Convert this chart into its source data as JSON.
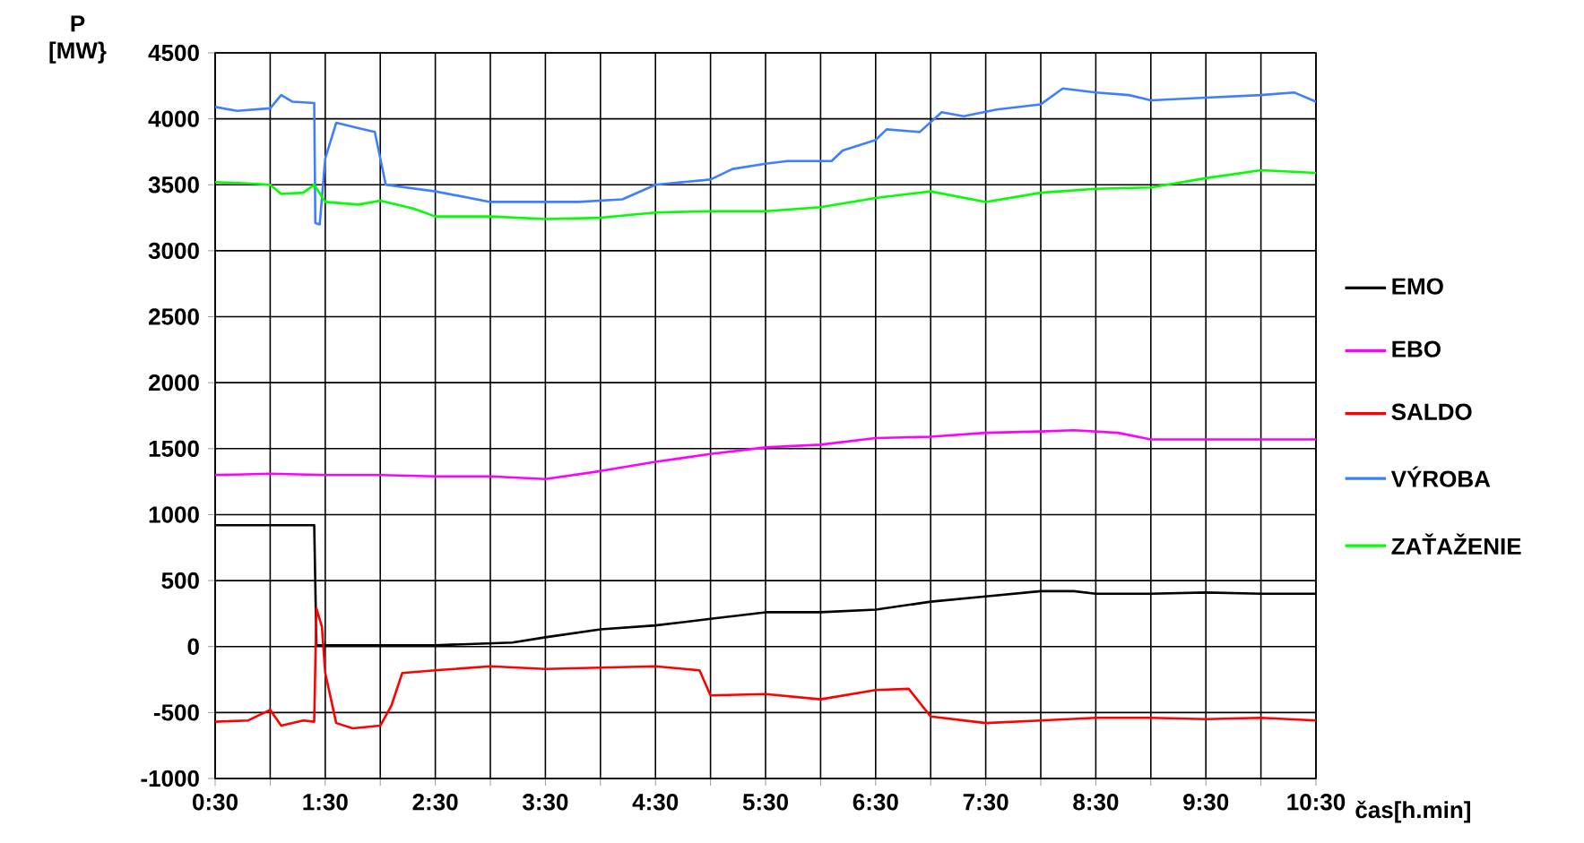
{
  "chart_data": {
    "type": "line",
    "xlabel": "čas[h.min]",
    "ylabel": "P [MW}",
    "xlim": [
      0.5,
      10.5
    ],
    "ylim": [
      -1000,
      4500
    ],
    "xticks": [
      {
        "value": 0.5,
        "label": "0:30"
      },
      {
        "value": 1,
        "label": null
      },
      {
        "value": 1.5,
        "label": "1:30"
      },
      {
        "value": 2,
        "label": null
      },
      {
        "value": 2.5,
        "label": "2:30"
      },
      {
        "value": 3,
        "label": null
      },
      {
        "value": 3.5,
        "label": "3:30"
      },
      {
        "value": 4,
        "label": null
      },
      {
        "value": 4.5,
        "label": "4:30"
      },
      {
        "value": 5,
        "label": null
      },
      {
        "value": 5.5,
        "label": "5:30"
      },
      {
        "value": 6,
        "label": null
      },
      {
        "value": 6.5,
        "label": "6:30"
      },
      {
        "value": 7,
        "label": null
      },
      {
        "value": 7.5,
        "label": "7:30"
      },
      {
        "value": 8,
        "label": null
      },
      {
        "value": 8.5,
        "label": "8:30"
      },
      {
        "value": 9,
        "label": null
      },
      {
        "value": 9.5,
        "label": "9:30"
      },
      {
        "value": 10,
        "label": null
      },
      {
        "value": 10.5,
        "label": "10:30"
      }
    ],
    "yticks": [
      -1000,
      -500,
      0,
      500,
      1000,
      1500,
      2000,
      2500,
      3000,
      3500,
      4000,
      4500
    ],
    "grid": true,
    "legend": "right",
    "line_style": "solid",
    "series": [
      {
        "name": "EMO",
        "color": "#000000",
        "x": [
          0.5,
          1.0,
          1.4,
          1.42,
          2.0,
          2.5,
          3.2,
          3.5,
          4.0,
          4.5,
          5.0,
          5.5,
          6.0,
          6.5,
          7.0,
          7.5,
          8.0,
          8.3,
          8.5,
          9.0,
          9.5,
          10.0,
          10.5
        ],
        "values": [
          920,
          920,
          920,
          10,
          10,
          10,
          30,
          70,
          130,
          160,
          210,
          260,
          260,
          280,
          340,
          380,
          420,
          420,
          400,
          400,
          410,
          400,
          400
        ]
      },
      {
        "name": "EBO",
        "color": "#ff00ff",
        "x": [
          0.5,
          1.0,
          1.5,
          2.0,
          2.5,
          3.0,
          3.5,
          4.0,
          4.5,
          5.0,
          5.5,
          6.0,
          6.5,
          7.0,
          7.5,
          8.0,
          8.3,
          8.7,
          9.0,
          9.5,
          10.0,
          10.5
        ],
        "values": [
          1300,
          1310,
          1300,
          1300,
          1290,
          1290,
          1270,
          1330,
          1400,
          1460,
          1510,
          1530,
          1580,
          1590,
          1620,
          1630,
          1640,
          1620,
          1570,
          1570,
          1570,
          1570
        ]
      },
      {
        "name": "SALDO",
        "color": "#ff0000",
        "x": [
          0.5,
          0.8,
          1.0,
          1.1,
          1.3,
          1.4,
          1.42,
          1.47,
          1.5,
          1.6,
          1.75,
          2.0,
          2.1,
          2.2,
          2.5,
          3.0,
          3.5,
          4.0,
          4.5,
          4.9,
          5.0,
          5.5,
          6.0,
          6.5,
          6.8,
          7.0,
          7.5,
          8.0,
          8.5,
          9.0,
          9.5,
          10.0,
          10.5
        ],
        "values": [
          -570,
          -560,
          -480,
          -600,
          -560,
          -570,
          290,
          150,
          -200,
          -580,
          -620,
          -600,
          -450,
          -200,
          -180,
          -150,
          -170,
          -160,
          -150,
          -180,
          -370,
          -360,
          -400,
          -330,
          -320,
          -530,
          -580,
          -560,
          -540,
          -540,
          -550,
          -540,
          -560
        ]
      },
      {
        "name": "VÝROBA",
        "color": "#3f7fff",
        "x": [
          0.5,
          0.7,
          1.0,
          1.1,
          1.2,
          1.4,
          1.41,
          1.45,
          1.5,
          1.6,
          1.8,
          1.95,
          2.05,
          2.5,
          3.0,
          3.5,
          3.8,
          4.2,
          4.5,
          5.0,
          5.2,
          5.5,
          5.7,
          6.1,
          6.2,
          6.5,
          6.6,
          6.9,
          7.1,
          7.3,
          7.6,
          8.0,
          8.2,
          8.5,
          8.8,
          9.0,
          9.5,
          10.0,
          10.3,
          10.5
        ],
        "values": [
          4090,
          4060,
          4080,
          4180,
          4130,
          4120,
          3210,
          3200,
          3700,
          3970,
          3930,
          3900,
          3500,
          3450,
          3370,
          3370,
          3370,
          3390,
          3500,
          3540,
          3620,
          3660,
          3680,
          3680,
          3760,
          3840,
          3920,
          3900,
          4050,
          4020,
          4070,
          4110,
          4230,
          4200,
          4180,
          4140,
          4160,
          4180,
          4200,
          4130
        ]
      },
      {
        "name": "ZAŤAŽENIE",
        "color": "#00ff00",
        "x": [
          0.5,
          0.8,
          1.0,
          1.1,
          1.3,
          1.4,
          1.5,
          1.8,
          2.0,
          2.3,
          2.5,
          3.0,
          3.5,
          4.0,
          4.5,
          5.0,
          5.5,
          6.0,
          6.5,
          7.0,
          7.5,
          8.0,
          8.5,
          9.0,
          9.5,
          10.0,
          10.5
        ],
        "values": [
          3520,
          3510,
          3500,
          3430,
          3440,
          3500,
          3370,
          3350,
          3380,
          3320,
          3260,
          3260,
          3240,
          3250,
          3290,
          3300,
          3300,
          3330,
          3400,
          3450,
          3370,
          3440,
          3470,
          3480,
          3550,
          3610,
          3590
        ]
      }
    ]
  }
}
